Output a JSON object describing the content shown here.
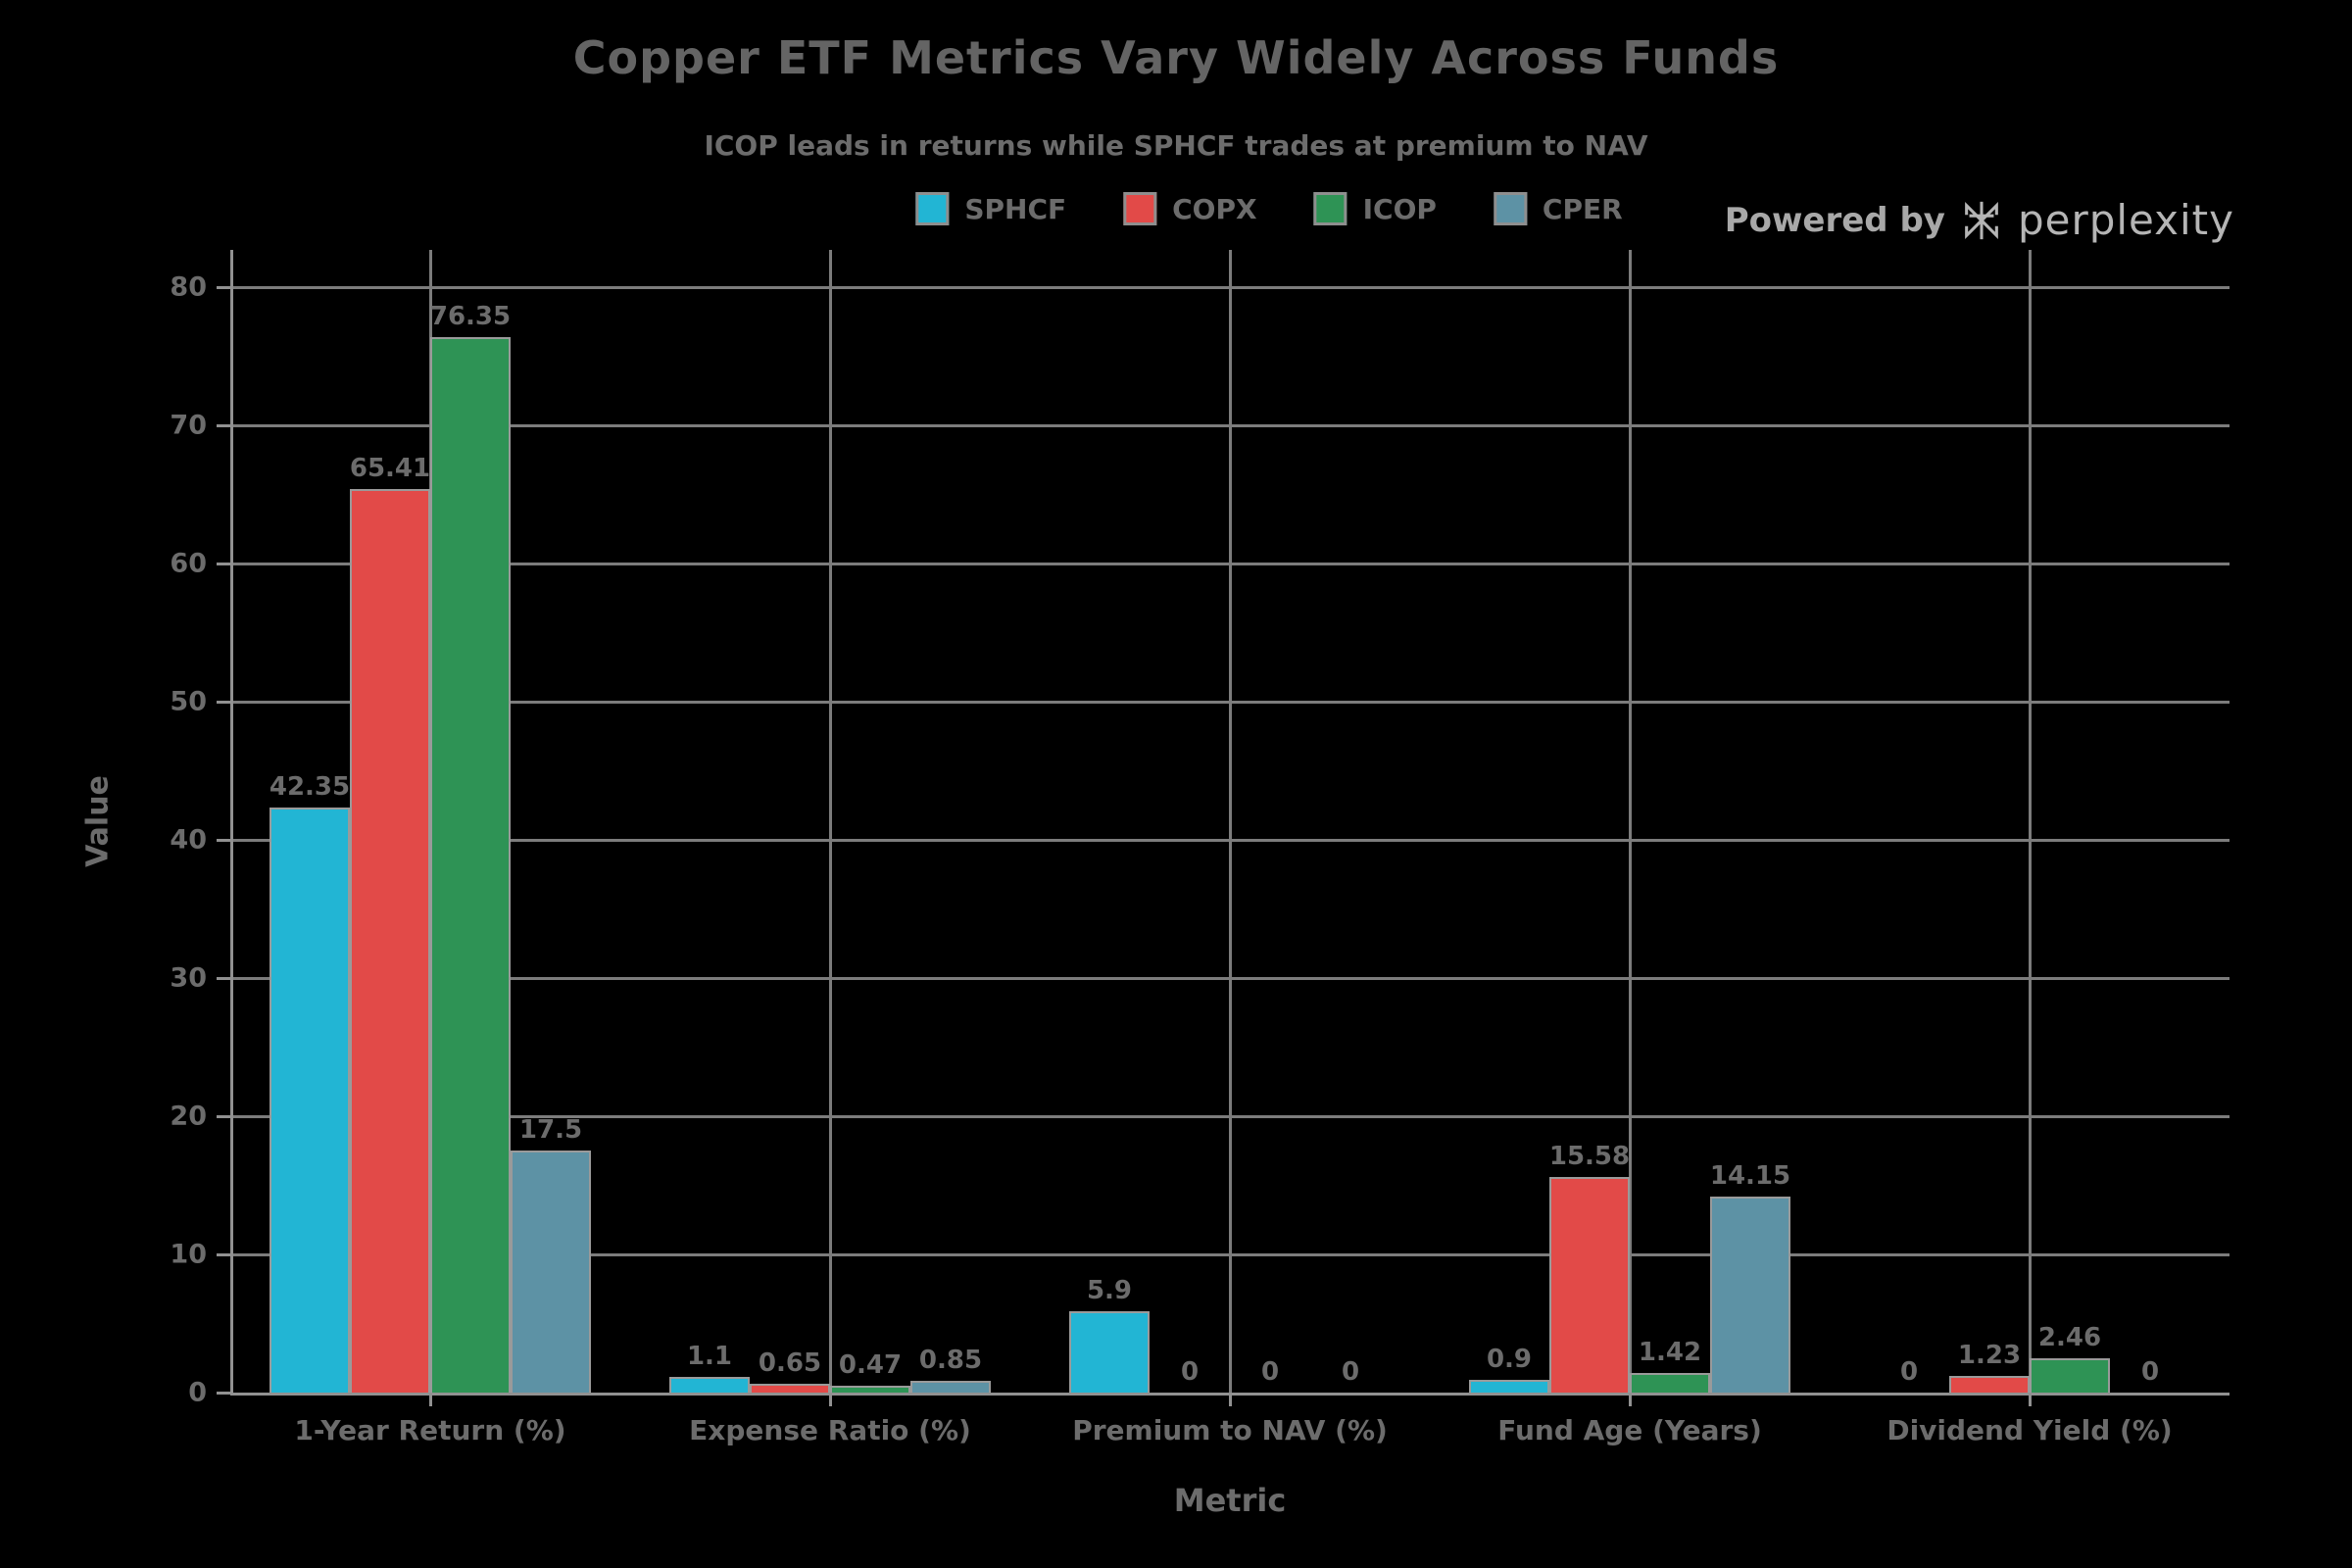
{
  "page": {
    "background": "#000000"
  },
  "header": {
    "title": "Copper ETF Metrics Vary Widely Across Funds",
    "subtitle": "ICOP leads in returns while SPHCF trades at premium to NAV",
    "powered_by_label": "Powered by",
    "brand_name": "perplexity"
  },
  "colors": {
    "sphcf": "#22b5d4",
    "copx": "#e24a48",
    "icop": "#2e9355",
    "cper": "#5d92a5",
    "grid": "#7c7c7c",
    "text": "#6c6c6c"
  },
  "chart_data": {
    "type": "bar",
    "title": "Copper ETF Metrics Vary Widely Across Funds",
    "subtitle": "ICOP leads in returns while SPHCF trades at premium to NAV",
    "xlabel": "Metric",
    "ylabel": "Value",
    "ylim": [
      0,
      80
    ],
    "yticks": [
      0,
      10,
      20,
      30,
      40,
      50,
      60,
      70,
      80
    ],
    "grid": true,
    "legend_position": "top-center",
    "categories": [
      "1-Year Return (%)",
      "Expense Ratio (%)",
      "Premium to NAV (%)",
      "Fund Age (Years)",
      "Dividend Yield (%)"
    ],
    "series": [
      {
        "name": "SPHCF",
        "color": "#22b5d4",
        "values": [
          42.35,
          1.1,
          5.9,
          0.9,
          0
        ],
        "labels": [
          "42.35",
          "1.1",
          "5.9",
          "0.9",
          "0"
        ]
      },
      {
        "name": "COPX",
        "color": "#e24a48",
        "values": [
          65.41,
          0.65,
          0,
          15.58,
          1.23
        ],
        "labels": [
          "65.41",
          "0.65",
          "0",
          "15.58",
          "1.23"
        ]
      },
      {
        "name": "ICOP",
        "color": "#2e9355",
        "values": [
          76.35,
          0.47,
          0,
          1.42,
          2.46
        ],
        "labels": [
          "76.35",
          "0.47",
          "0",
          "1.42",
          "2.46"
        ]
      },
      {
        "name": "CPER",
        "color": "#5d92a5",
        "values": [
          17.5,
          0.85,
          0,
          14.15,
          0
        ],
        "labels": [
          "17.5",
          "0.85",
          "0",
          "14.15",
          "0"
        ]
      }
    ]
  }
}
